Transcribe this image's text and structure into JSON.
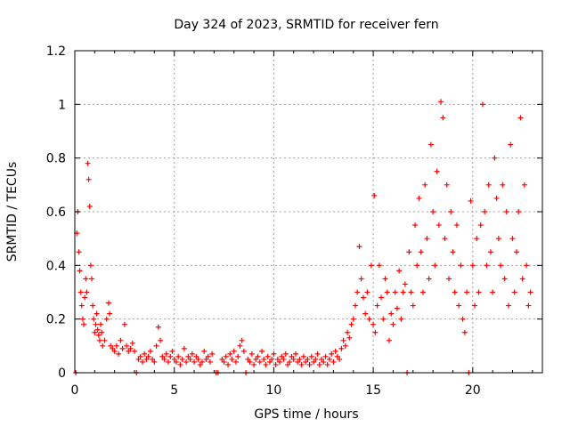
{
  "chart_data": {
    "type": "scatter",
    "title": "Day 324 of 2023, SRMTID for receiver fern",
    "xlabel": "GPS time / hours",
    "ylabel": "SRMTID / TECUs",
    "xlim": [
      0,
      23.5
    ],
    "ylim": [
      0,
      1.2
    ],
    "x_ticks": [
      0,
      5,
      10,
      15,
      20
    ],
    "x_tick_labels": [
      "0",
      "5",
      "10",
      "15",
      "20"
    ],
    "y_ticks": [
      0,
      0.2,
      0.4,
      0.6,
      0.8,
      1.0,
      1.2
    ],
    "y_tick_labels": [
      "0",
      "0.2",
      "0.4",
      "0.6",
      "0.8",
      "1",
      "1.2"
    ],
    "grid": true,
    "marker": "+",
    "series_color": "#ff0000",
    "series": [
      {
        "name": "fern",
        "points": [
          [
            0.05,
            0.0
          ],
          [
            0.1,
            0.52
          ],
          [
            0.15,
            0.6
          ],
          [
            0.2,
            0.45
          ],
          [
            0.25,
            0.38
          ],
          [
            0.3,
            0.3
          ],
          [
            0.35,
            0.25
          ],
          [
            0.4,
            0.2
          ],
          [
            0.45,
            0.18
          ],
          [
            0.5,
            0.28
          ],
          [
            0.55,
            0.35
          ],
          [
            0.6,
            0.3
          ],
          [
            0.65,
            0.78
          ],
          [
            0.7,
            0.72
          ],
          [
            0.75,
            0.62
          ],
          [
            0.8,
            0.4
          ],
          [
            0.85,
            0.35
          ],
          [
            0.9,
            0.25
          ],
          [
            0.95,
            0.2
          ],
          [
            1.0,
            0.15
          ],
          [
            1.05,
            0.18
          ],
          [
            1.1,
            0.22
          ],
          [
            1.15,
            0.16
          ],
          [
            1.2,
            0.14
          ],
          [
            1.25,
            0.12
          ],
          [
            1.3,
            0.18
          ],
          [
            1.35,
            0.15
          ],
          [
            1.4,
            0.1
          ],
          [
            1.5,
            0.12
          ],
          [
            1.6,
            0.2
          ],
          [
            1.7,
            0.26
          ],
          [
            1.75,
            0.22
          ],
          [
            1.8,
            0.1
          ],
          [
            1.9,
            0.09
          ],
          [
            2.0,
            0.08
          ],
          [
            2.1,
            0.1
          ],
          [
            2.2,
            0.07
          ],
          [
            2.3,
            0.12
          ],
          [
            2.4,
            0.09
          ],
          [
            2.5,
            0.18
          ],
          [
            2.6,
            0.1
          ],
          [
            2.7,
            0.08
          ],
          [
            2.8,
            0.09
          ],
          [
            2.9,
            0.11
          ],
          [
            3.0,
            0.08
          ],
          [
            3.1,
            0.0
          ],
          [
            3.2,
            0.05
          ],
          [
            3.3,
            0.06
          ],
          [
            3.4,
            0.04
          ],
          [
            3.5,
            0.07
          ],
          [
            3.6,
            0.05
          ],
          [
            3.7,
            0.06
          ],
          [
            3.8,
            0.08
          ],
          [
            3.9,
            0.05
          ],
          [
            4.0,
            0.04
          ],
          [
            4.1,
            0.1
          ],
          [
            4.2,
            0.17
          ],
          [
            4.3,
            0.12
          ],
          [
            4.4,
            0.06
          ],
          [
            4.5,
            0.05
          ],
          [
            4.6,
            0.07
          ],
          [
            4.7,
            0.04
          ],
          [
            4.8,
            0.06
          ],
          [
            4.9,
            0.08
          ],
          [
            5.0,
            0.05
          ],
          [
            5.1,
            0.04
          ],
          [
            5.2,
            0.06
          ],
          [
            5.3,
            0.03
          ],
          [
            5.4,
            0.05
          ],
          [
            5.5,
            0.09
          ],
          [
            5.6,
            0.04
          ],
          [
            5.7,
            0.06
          ],
          [
            5.8,
            0.05
          ],
          [
            5.9,
            0.07
          ],
          [
            6.0,
            0.04
          ],
          [
            6.1,
            0.06
          ],
          [
            6.2,
            0.05
          ],
          [
            6.3,
            0.03
          ],
          [
            6.4,
            0.04
          ],
          [
            6.5,
            0.08
          ],
          [
            6.6,
            0.05
          ],
          [
            6.7,
            0.06
          ],
          [
            6.8,
            0.04
          ],
          [
            6.9,
            0.07
          ],
          [
            7.1,
            0.0
          ],
          [
            7.2,
            0.0
          ],
          [
            7.4,
            0.05
          ],
          [
            7.5,
            0.04
          ],
          [
            7.6,
            0.06
          ],
          [
            7.7,
            0.03
          ],
          [
            7.8,
            0.07
          ],
          [
            7.9,
            0.05
          ],
          [
            8.0,
            0.08
          ],
          [
            8.1,
            0.04
          ],
          [
            8.2,
            0.06
          ],
          [
            8.3,
            0.1
          ],
          [
            8.4,
            0.12
          ],
          [
            8.5,
            0.08
          ],
          [
            8.6,
            0.0
          ],
          [
            8.7,
            0.05
          ],
          [
            8.8,
            0.04
          ],
          [
            8.9,
            0.07
          ],
          [
            9.0,
            0.03
          ],
          [
            9.1,
            0.05
          ],
          [
            9.2,
            0.06
          ],
          [
            9.3,
            0.04
          ],
          [
            9.4,
            0.08
          ],
          [
            9.5,
            0.05
          ],
          [
            9.6,
            0.03
          ],
          [
            9.7,
            0.06
          ],
          [
            9.8,
            0.04
          ],
          [
            9.9,
            0.05
          ],
          [
            10.0,
            0.07
          ],
          [
            10.1,
            0.03
          ],
          [
            10.2,
            0.05
          ],
          [
            10.3,
            0.04
          ],
          [
            10.4,
            0.06
          ],
          [
            10.5,
            0.05
          ],
          [
            10.6,
            0.07
          ],
          [
            10.7,
            0.03
          ],
          [
            10.8,
            0.04
          ],
          [
            10.9,
            0.06
          ],
          [
            11.0,
            0.05
          ],
          [
            11.1,
            0.07
          ],
          [
            11.2,
            0.04
          ],
          [
            11.3,
            0.05
          ],
          [
            11.4,
            0.03
          ],
          [
            11.5,
            0.06
          ],
          [
            11.6,
            0.04
          ],
          [
            11.7,
            0.05
          ],
          [
            11.8,
            0.03
          ],
          [
            11.9,
            0.06
          ],
          [
            12.0,
            0.04
          ],
          [
            12.1,
            0.05
          ],
          [
            12.2,
            0.07
          ],
          [
            12.3,
            0.03
          ],
          [
            12.4,
            0.05
          ],
          [
            12.5,
            0.04
          ],
          [
            12.6,
            0.06
          ],
          [
            12.7,
            0.03
          ],
          [
            12.8,
            0.05
          ],
          [
            12.9,
            0.07
          ],
          [
            13.0,
            0.04
          ],
          [
            13.1,
            0.08
          ],
          [
            13.2,
            0.06
          ],
          [
            13.3,
            0.05
          ],
          [
            13.4,
            0.09
          ],
          [
            13.5,
            0.12
          ],
          [
            13.6,
            0.1
          ],
          [
            13.7,
            0.15
          ],
          [
            13.8,
            0.13
          ],
          [
            13.9,
            0.18
          ],
          [
            14.0,
            0.2
          ],
          [
            14.1,
            0.25
          ],
          [
            14.2,
            0.3
          ],
          [
            14.3,
            0.47
          ],
          [
            14.4,
            0.35
          ],
          [
            14.5,
            0.28
          ],
          [
            14.6,
            0.22
          ],
          [
            14.7,
            0.3
          ],
          [
            14.8,
            0.2
          ],
          [
            14.9,
            0.4
          ],
          [
            15.0,
            0.18
          ],
          [
            15.05,
            0.66
          ],
          [
            15.1,
            0.15
          ],
          [
            15.2,
            0.25
          ],
          [
            15.3,
            0.4
          ],
          [
            15.4,
            0.28
          ],
          [
            15.5,
            0.2
          ],
          [
            15.6,
            0.35
          ],
          [
            15.7,
            0.3
          ],
          [
            15.8,
            0.12
          ],
          [
            15.9,
            0.22
          ],
          [
            16.0,
            0.18
          ],
          [
            16.1,
            0.3
          ],
          [
            16.2,
            0.24
          ],
          [
            16.3,
            0.38
          ],
          [
            16.4,
            0.2
          ],
          [
            16.5,
            0.3
          ],
          [
            16.6,
            0.33
          ],
          [
            16.7,
            0.0
          ],
          [
            16.8,
            0.45
          ],
          [
            16.9,
            0.3
          ],
          [
            17.0,
            0.25
          ],
          [
            17.1,
            0.55
          ],
          [
            17.2,
            0.4
          ],
          [
            17.3,
            0.65
          ],
          [
            17.4,
            0.45
          ],
          [
            17.5,
            0.3
          ],
          [
            17.6,
            0.7
          ],
          [
            17.7,
            0.5
          ],
          [
            17.8,
            0.35
          ],
          [
            17.9,
            0.85
          ],
          [
            18.0,
            0.6
          ],
          [
            18.1,
            0.4
          ],
          [
            18.2,
            0.75
          ],
          [
            18.3,
            0.55
          ],
          [
            18.4,
            1.01
          ],
          [
            18.5,
            0.95
          ],
          [
            18.6,
            0.5
          ],
          [
            18.7,
            0.7
          ],
          [
            18.8,
            0.35
          ],
          [
            18.9,
            0.6
          ],
          [
            19.0,
            0.45
          ],
          [
            19.1,
            0.3
          ],
          [
            19.2,
            0.55
          ],
          [
            19.3,
            0.25
          ],
          [
            19.4,
            0.4
          ],
          [
            19.5,
            0.2
          ],
          [
            19.6,
            0.15
          ],
          [
            19.7,
            0.3
          ],
          [
            19.8,
            0.0
          ],
          [
            19.9,
            0.64
          ],
          [
            20.0,
            0.4
          ],
          [
            20.1,
            0.25
          ],
          [
            20.2,
            0.5
          ],
          [
            20.3,
            0.3
          ],
          [
            20.4,
            0.55
          ],
          [
            20.5,
            1.0
          ],
          [
            20.6,
            0.6
          ],
          [
            20.7,
            0.4
          ],
          [
            20.8,
            0.7
          ],
          [
            20.9,
            0.45
          ],
          [
            21.0,
            0.3
          ],
          [
            21.1,
            0.8
          ],
          [
            21.2,
            0.65
          ],
          [
            21.3,
            0.5
          ],
          [
            21.4,
            0.4
          ],
          [
            21.5,
            0.7
          ],
          [
            21.6,
            0.35
          ],
          [
            21.7,
            0.6
          ],
          [
            21.8,
            0.25
          ],
          [
            21.9,
            0.85
          ],
          [
            22.0,
            0.5
          ],
          [
            22.1,
            0.3
          ],
          [
            22.2,
            0.45
          ],
          [
            22.3,
            0.6
          ],
          [
            22.4,
            0.95
          ],
          [
            22.5,
            0.35
          ],
          [
            22.6,
            0.7
          ],
          [
            22.7,
            0.4
          ],
          [
            22.8,
            0.25
          ],
          [
            22.9,
            0.3
          ]
        ]
      }
    ]
  }
}
